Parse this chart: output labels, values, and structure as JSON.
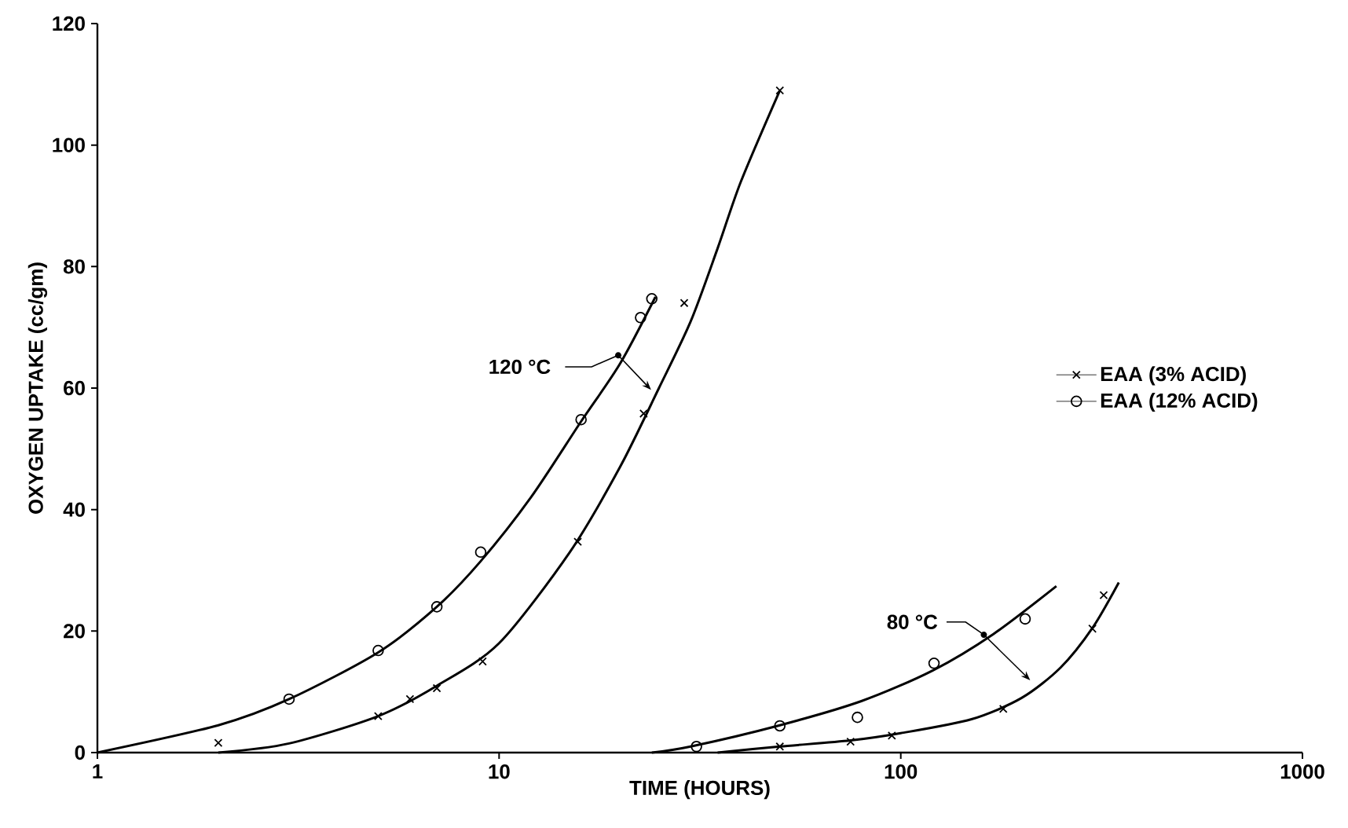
{
  "chart_data": {
    "type": "scatter",
    "xlabel": "TIME (HOURS)",
    "ylabel": "OXYGEN UPTAKE (cc/gm)",
    "log": "x",
    "xlim": [
      1,
      1000
    ],
    "xticks": [
      1,
      10,
      100,
      1000
    ],
    "ylim": [
      0,
      120
    ],
    "yticks": [
      0,
      20,
      40,
      60,
      80,
      100,
      120
    ],
    "grid": false,
    "legend": "right",
    "series": [
      {
        "name": "EAA (3% ACID)",
        "marker": "cross",
        "color": "#000000",
        "x": [
          2,
          5,
          6,
          7,
          9.1,
          15.7,
          22.9,
          28.9,
          50
        ],
        "values": [
          1.6,
          6,
          8.8,
          10.6,
          15,
          34.7,
          55.8,
          74,
          109
        ]
      },
      {
        "name": "EAA (12% ACID)",
        "marker": "circle",
        "color": "#000000",
        "x": [
          3,
          5,
          7,
          9,
          16,
          22.5,
          24
        ],
        "values": [
          8.8,
          16.8,
          24,
          33,
          54.8,
          71.6,
          74.7
        ]
      },
      {
        "marker": "cross",
        "color": "#000000",
        "x": [
          50,
          75,
          95,
          180,
          300,
          320
        ],
        "values": [
          1,
          1.8,
          2.8,
          7.2,
          20.4,
          25.9
        ]
      },
      {
        "marker": "circle",
        "color": "#000000",
        "x": [
          31,
          50,
          78,
          121,
          204
        ],
        "values": [
          1,
          4.4,
          5.8,
          14.7,
          22
        ]
      },
      {
        "type": "line",
        "marker": "none",
        "color": "#000000",
        "x": [
          1,
          2,
          3,
          5,
          7,
          9,
          12,
          16,
          20,
          24.5
        ],
        "values": [
          0,
          4.5,
          8.8,
          16.5,
          24,
          31.5,
          42,
          54.5,
          64,
          75
        ]
      },
      {
        "type": "line",
        "marker": "none",
        "color": "#000000",
        "x": [
          2,
          3,
          5,
          7,
          10,
          15,
          20,
          25,
          30,
          35,
          40,
          50
        ],
        "values": [
          0,
          1.5,
          6,
          11,
          18,
          33,
          47,
          60,
          71,
          83,
          94,
          109
        ]
      },
      {
        "type": "line",
        "marker": "none",
        "color": "#000000",
        "x": [
          24,
          30,
          50,
          80,
          120,
          170,
          244
        ],
        "values": [
          0,
          1,
          4.5,
          8.5,
          13.5,
          19.5,
          27.4
        ]
      },
      {
        "type": "line",
        "marker": "none",
        "color": "#000000",
        "x": [
          35,
          50,
          75,
          100,
          150,
          200,
          250,
          300,
          349
        ],
        "values": [
          0,
          1,
          2,
          3.2,
          5.5,
          9,
          14,
          20.5,
          28
        ]
      }
    ],
    "annotations": [
      {
        "text": "120 °C",
        "x": 19.8,
        "y": 65.4
      },
      {
        "text": "80 °C",
        "x": 161,
        "y": 19.4
      }
    ]
  }
}
